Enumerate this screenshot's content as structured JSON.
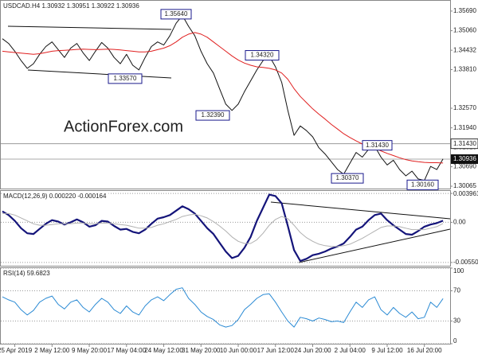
{
  "chart_data": [
    {
      "type": "line",
      "title": "USDCAD.H4  1.30932 1.30951 1.30922 1.30936",
      "watermark": "ActionForex.com",
      "ylim": [
        1.2999,
        1.3602
      ],
      "yticks": [
        {
          "value": 1.3569,
          "label": "1.35690"
        },
        {
          "value": 1.3506,
          "label": "1.35060"
        },
        1.34432,
        {
          "value": 1.3381,
          "label": "1.33810"
        },
        {
          "value": 1.3257,
          "label": "1.32570"
        },
        {
          "value": 1.3194,
          "label": "1.31940"
        },
        {
          "value": 1.3131,
          "label": "1.31310"
        },
        {
          "value": 1.3069,
          "label": "1.30690"
        },
        1.30065
      ],
      "level": {
        "value": 1.3143,
        "label": "1.31430"
      },
      "current": {
        "value": 1.30936,
        "label": "1.30936"
      },
      "annotations": [
        {
          "value": 1.3564,
          "label": "1.35640"
        },
        {
          "value": 1.3357,
          "label": "1.33570"
        },
        {
          "value": 1.3239,
          "label": "1.32390"
        },
        {
          "value": 1.3432,
          "label": "1.34320"
        },
        {
          "value": 1.3143,
          "label": "1.31430"
        },
        {
          "value": 1.3037,
          "label": "1.30370"
        },
        {
          "value": 1.3016,
          "label": "1.30160"
        }
      ],
      "grid": false,
      "series": [
        {
          "name": "Close",
          "color": "#111111",
          "width": 1,
          "values": [
            1.348,
            1.3465,
            1.344,
            1.341,
            1.3385,
            1.34,
            1.343,
            1.3455,
            1.347,
            1.3445,
            1.342,
            1.345,
            1.3465,
            1.3435,
            1.341,
            1.344,
            1.3468,
            1.345,
            1.342,
            1.34,
            1.343,
            1.3395,
            1.338,
            1.342,
            1.3455,
            1.347,
            1.346,
            1.349,
            1.353,
            1.3555,
            1.352,
            1.349,
            1.344,
            1.34,
            1.337,
            1.332,
            1.327,
            1.325,
            1.327,
            1.331,
            1.3345,
            1.338,
            1.341,
            1.3425,
            1.339,
            1.334,
            1.325,
            1.317,
            1.32,
            1.3185,
            1.3165,
            1.313,
            1.311,
            1.3085,
            1.306,
            1.3045,
            1.308,
            1.3115,
            1.31,
            1.3125,
            1.3135,
            1.31,
            1.3075,
            1.309,
            1.306,
            1.304,
            1.3055,
            1.303,
            1.3025,
            1.307,
            1.306,
            1.3094
          ]
        },
        {
          "name": "MA",
          "color": "#e02020",
          "width": 1,
          "values": [
            1.344,
            1.3438,
            1.3436,
            1.3434,
            1.3432,
            1.343,
            1.3432,
            1.3436,
            1.344,
            1.3442,
            1.3443,
            1.3444,
            1.3446,
            1.3447,
            1.3446,
            1.3445,
            1.3446,
            1.3447,
            1.3446,
            1.3444,
            1.3442,
            1.344,
            1.3438,
            1.3438,
            1.344,
            1.3445,
            1.345,
            1.3458,
            1.347,
            1.3485,
            1.3495,
            1.35,
            1.3495,
            1.3485,
            1.347,
            1.3455,
            1.344,
            1.3425,
            1.3412,
            1.3402,
            1.3395,
            1.339,
            1.3388,
            1.3385,
            1.338,
            1.337,
            1.335,
            1.332,
            1.3295,
            1.3275,
            1.3255,
            1.3238,
            1.3222,
            1.3205,
            1.319,
            1.3175,
            1.3163,
            1.3152,
            1.3142,
            1.3135,
            1.3128,
            1.312,
            1.3112,
            1.3105,
            1.3098,
            1.3092,
            1.3088,
            1.3085,
            1.3083,
            1.3082,
            1.3082,
            1.3081
          ]
        }
      ]
    },
    {
      "type": "line",
      "title": "MACD(12,26,9) 0.000220 -0.000164",
      "ylim": [
        -0.00595,
        0.0043
      ],
      "yticks": [
        0.003961,
        {
          "value": 0,
          "label": "0.00"
        },
        -0.005503
      ],
      "grid": "dotted",
      "series": [
        {
          "name": "MACD",
          "color": "#14147a",
          "width": 2.2,
          "values": [
            0.0015,
            0.001,
            0.0002,
            -0.0008,
            -0.0015,
            -0.0016,
            -0.0009,
            -0.0002,
            0.0003,
            0.0001,
            -0.0003,
            0.0,
            0.0004,
            0.0,
            -0.0006,
            -0.0004,
            0.0002,
            0.0001,
            -0.0005,
            -0.001,
            -0.0009,
            -0.0013,
            -0.0015,
            -0.001,
            -0.0002,
            0.0005,
            0.0007,
            0.001,
            0.0016,
            0.0022,
            0.0018,
            0.0012,
            0.0002,
            -0.0008,
            -0.0016,
            -0.0028,
            -0.004,
            -0.0049,
            -0.0046,
            -0.0035,
            -0.002,
            0.0002,
            0.002,
            0.0038,
            0.0036,
            0.0026,
            -0.0005,
            -0.0038,
            -0.0053,
            -0.005,
            -0.0045,
            -0.0043,
            -0.004,
            -0.0036,
            -0.0033,
            -0.0029,
            -0.002,
            -0.001,
            -0.0006,
            0.0003,
            0.001,
            0.0012,
            0.0003,
            -0.0004,
            -0.001,
            -0.0016,
            -0.0017,
            -0.0012,
            -0.0006,
            -0.0003,
            -0.0001,
            0.00022
          ]
        },
        {
          "name": "Signal",
          "color": "#b0b0b0",
          "width": 1,
          "values": [
            0.0012,
            0.0012,
            0.001,
            0.0006,
            0.0002,
            -0.0002,
            -0.0004,
            -0.0004,
            -0.0003,
            -0.0002,
            -0.0002,
            -0.0002,
            -0.0001,
            -0.0001,
            -0.0002,
            -0.0002,
            -0.0001,
            -0.0001,
            -0.0002,
            -0.0003,
            -0.0004,
            -0.0006,
            -0.0008,
            -0.0008,
            -0.0007,
            -0.0004,
            -0.0002,
            0.0001,
            0.0004,
            0.0008,
            0.001,
            0.0011,
            0.0009,
            0.0006,
            0.0001,
            -0.0005,
            -0.0012,
            -0.002,
            -0.0026,
            -0.0029,
            -0.0029,
            -0.0024,
            -0.0015,
            -0.0004,
            0.0004,
            0.0008,
            0.0005,
            -0.0004,
            -0.0014,
            -0.0021,
            -0.0026,
            -0.003,
            -0.0032,
            -0.0033,
            -0.0033,
            -0.0032,
            -0.003,
            -0.0026,
            -0.0022,
            -0.0017,
            -0.0012,
            -0.0007,
            -0.0005,
            -0.0005,
            -0.0006,
            -0.0008,
            -0.001,
            -0.001,
            -0.001,
            -0.0008,
            -0.0006,
            -0.00016
          ]
        }
      ]
    },
    {
      "type": "line",
      "title": "RSI(14) 59.6823",
      "ylim": [
        0,
        100
      ],
      "yticks": [
        100,
        70,
        30,
        0
      ],
      "grid": "dotted",
      "categories": [
        null,
        null,
        "25 Apr 2019",
        null,
        null,
        null,
        null,
        null,
        "2 May 12:00",
        null,
        null,
        null,
        null,
        null,
        "9 May 20:00",
        null,
        null,
        null,
        null,
        null,
        "17 May 04:00",
        null,
        null,
        null,
        null,
        null,
        "24 May 12:00",
        null,
        null,
        null,
        null,
        null,
        "31 May 20:00",
        null,
        null,
        null,
        null,
        null,
        "10 Jun 00:00",
        null,
        null,
        null,
        null,
        null,
        "17 Jun 12:00",
        null,
        null,
        null,
        null,
        null,
        "24 Jun 20:00",
        null,
        null,
        null,
        null,
        null,
        "2 Jul 04:00",
        null,
        null,
        null,
        null,
        null,
        "9 Jul 12:00",
        null,
        null,
        null,
        null,
        null,
        "16 Jul 20:00",
        null,
        null,
        null
      ],
      "series": [
        {
          "name": "RSI",
          "color": "#2a8ad4",
          "width": 1,
          "values": [
            62,
            58,
            55,
            45,
            38,
            44,
            55,
            60,
            63,
            52,
            46,
            55,
            58,
            48,
            42,
            52,
            60,
            55,
            45,
            40,
            50,
            42,
            38,
            50,
            58,
            62,
            57,
            65,
            72,
            74,
            60,
            52,
            42,
            36,
            32,
            25,
            22,
            24,
            32,
            45,
            52,
            60,
            65,
            66,
            55,
            42,
            30,
            22,
            35,
            33,
            30,
            34,
            32,
            29,
            30,
            28,
            42,
            55,
            48,
            58,
            62,
            45,
            38,
            48,
            40,
            35,
            42,
            33,
            35,
            55,
            48,
            59.68
          ]
        }
      ]
    }
  ]
}
